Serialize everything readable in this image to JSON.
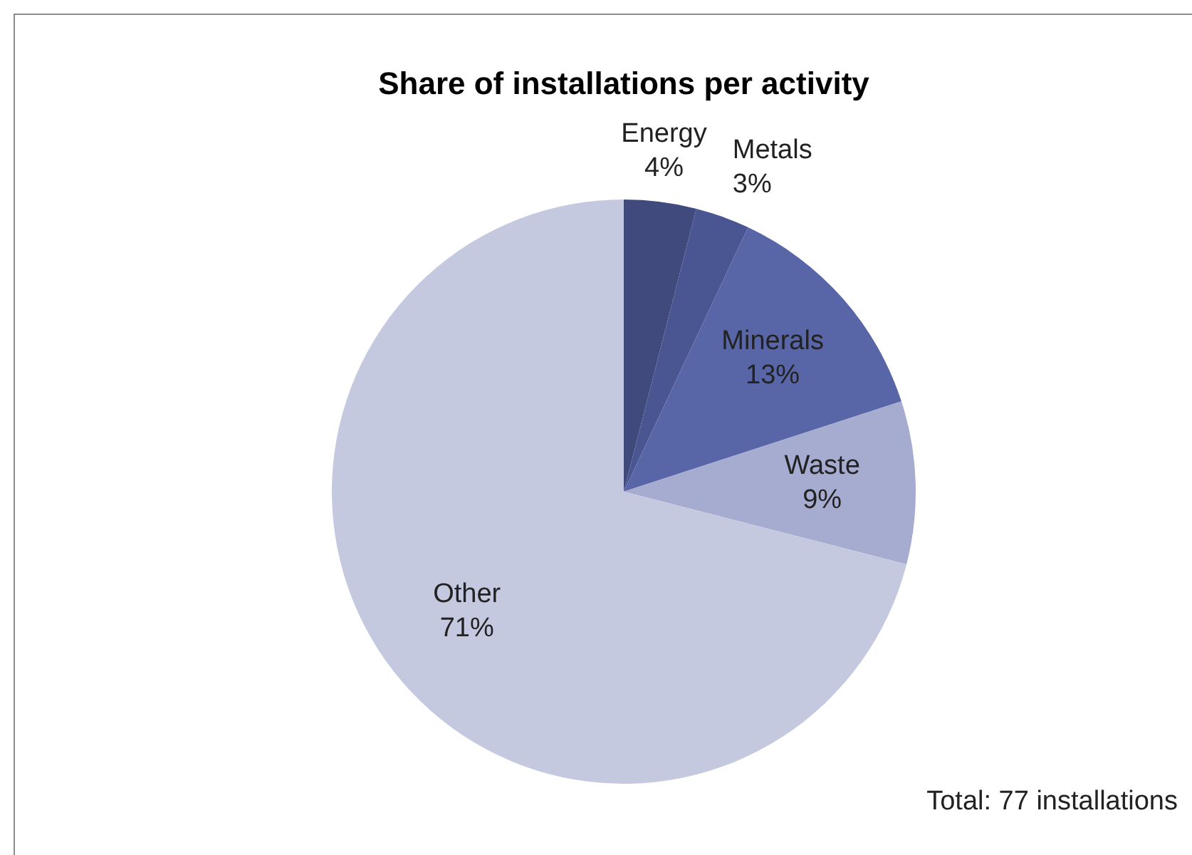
{
  "chart_data": {
    "type": "pie",
    "title": "Share of installations per activity",
    "categories": [
      "Energy",
      "Metals",
      "Minerals",
      "Waste",
      "Other"
    ],
    "values": [
      4,
      3,
      13,
      9,
      71
    ],
    "colors": [
      "#404a7c",
      "#4a5692",
      "#5866a8",
      "#a6abd0",
      "#c5c9df"
    ],
    "value_labels": [
      "4%",
      "3%",
      "13%",
      "9%",
      "71%"
    ],
    "annotations": [
      "Total: 77 installations"
    ]
  }
}
